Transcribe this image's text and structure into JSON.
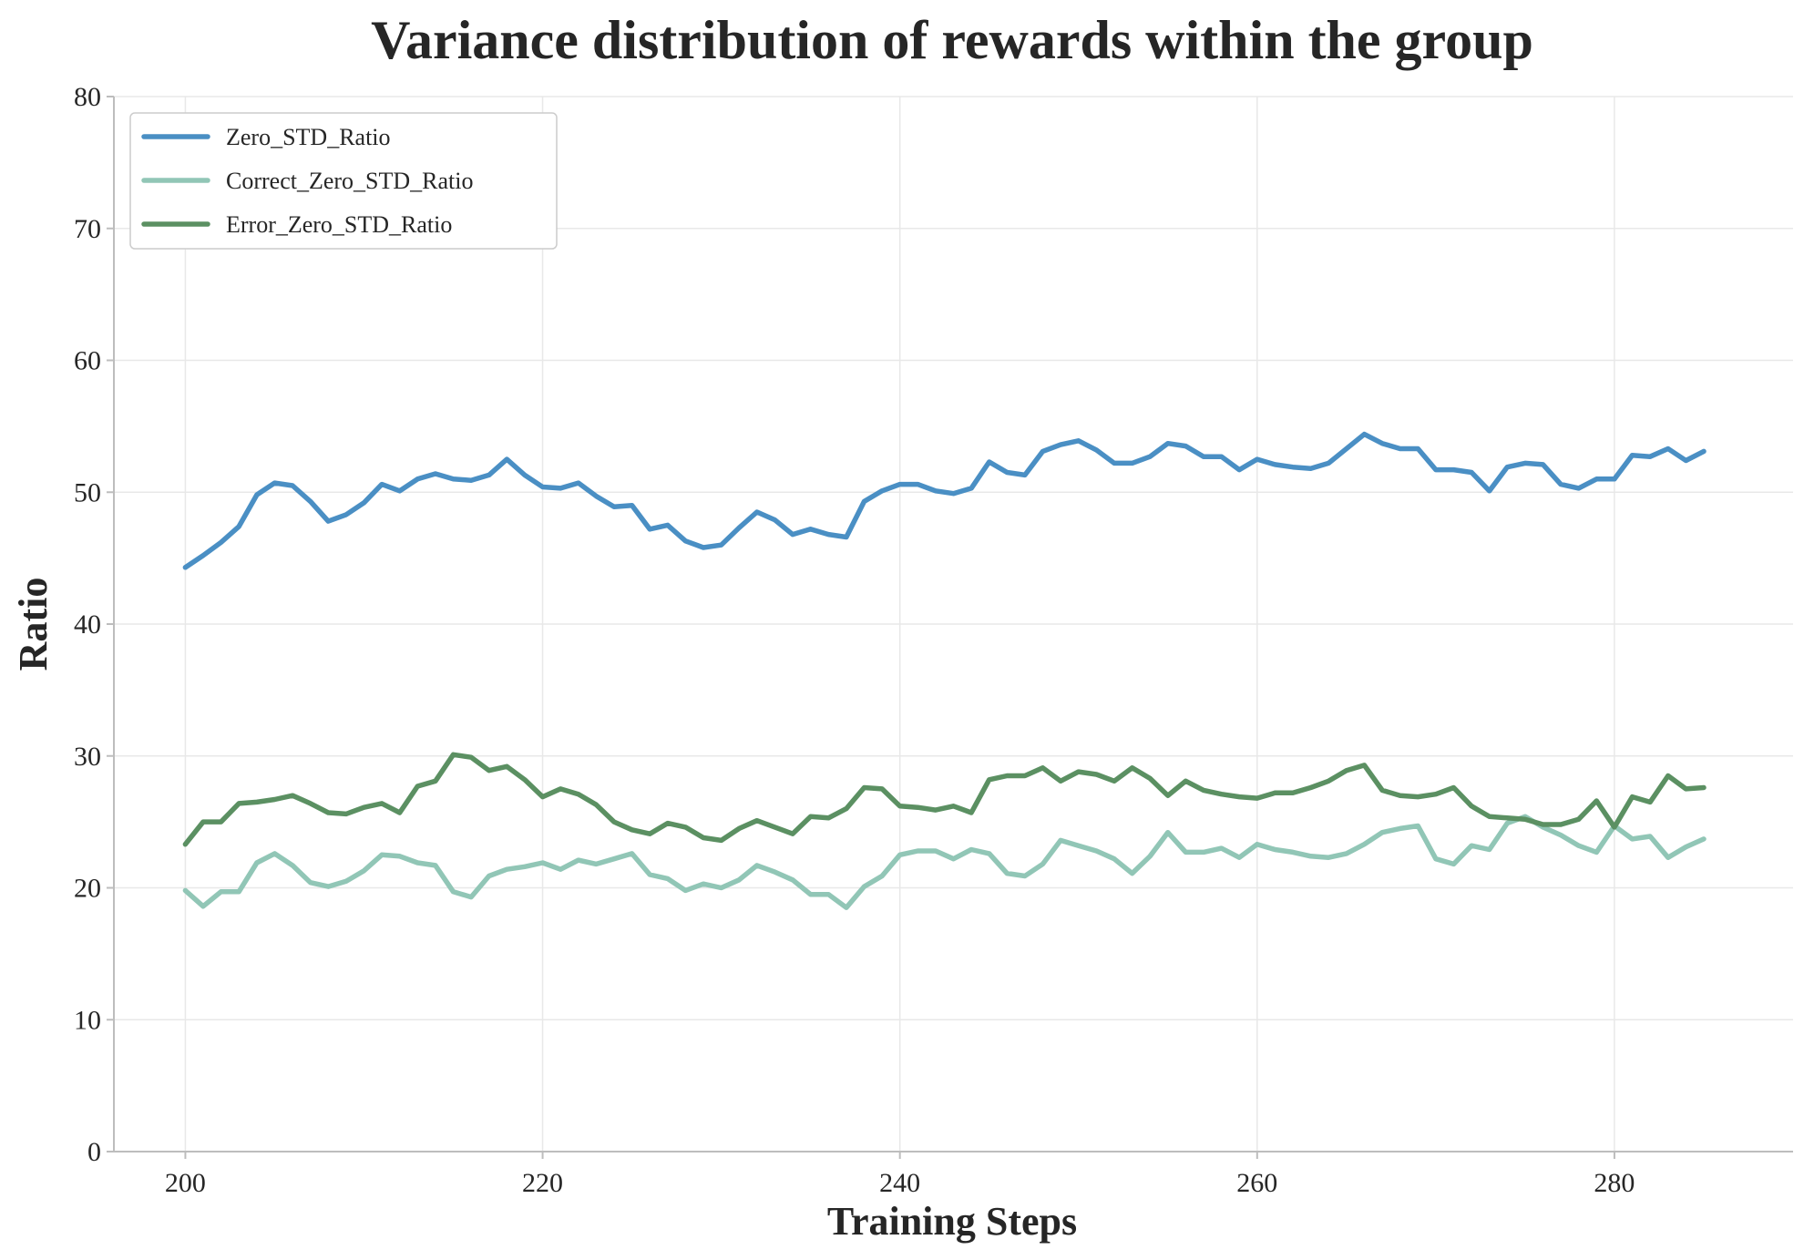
{
  "chart_data": {
    "type": "line",
    "title": "Variance distribution of rewards within the group",
    "xlabel": "Training Steps",
    "ylabel": "Ratio",
    "xlim": [
      196,
      290
    ],
    "ylim": [
      0,
      80
    ],
    "xticks": [
      200,
      220,
      240,
      260,
      280
    ],
    "yticks": [
      0,
      10,
      20,
      30,
      40,
      50,
      60,
      70,
      80
    ],
    "grid": true,
    "legend_position": "top-left",
    "x_start": 200,
    "x_step": 1,
    "series": [
      {
        "name": "Zero_STD_Ratio",
        "color": "#4a8fc4",
        "values": [
          44.3,
          45.2,
          46.2,
          47.4,
          49.8,
          50.7,
          50.5,
          49.3,
          47.8,
          48.3,
          49.2,
          50.6,
          50.1,
          51.0,
          51.4,
          51.0,
          50.9,
          51.3,
          52.5,
          51.3,
          50.4,
          50.3,
          50.7,
          49.7,
          48.9,
          49.0,
          47.2,
          47.5,
          46.3,
          45.8,
          46.0,
          47.3,
          48.5,
          47.9,
          46.8,
          47.2,
          46.8,
          46.6,
          49.3,
          50.1,
          50.6,
          50.6,
          50.1,
          49.9,
          50.3,
          52.3,
          51.5,
          51.3,
          53.1,
          53.6,
          53.9,
          53.2,
          52.2,
          52.2,
          52.7,
          53.7,
          53.5,
          52.7,
          52.7,
          51.7,
          52.5,
          52.1,
          51.9,
          51.8,
          52.2,
          53.3,
          54.4,
          53.7,
          53.3,
          53.3,
          51.7,
          51.7,
          51.5,
          50.1,
          51.9,
          52.2,
          52.1,
          50.6,
          50.3,
          51.0,
          51.0,
          52.8,
          52.7,
          53.3,
          52.4,
          53.1
        ]
      },
      {
        "name": "Correct_Zero_STD_Ratio",
        "color": "#91c6b6",
        "values": [
          19.8,
          18.6,
          19.7,
          19.7,
          21.9,
          22.6,
          21.7,
          20.4,
          20.1,
          20.5,
          21.3,
          22.5,
          22.4,
          21.9,
          21.7,
          19.7,
          19.3,
          20.9,
          21.4,
          21.6,
          21.9,
          21.4,
          22.1,
          21.8,
          22.2,
          22.6,
          21.0,
          20.7,
          19.8,
          20.3,
          20.0,
          20.6,
          21.7,
          21.2,
          20.6,
          19.5,
          19.5,
          18.5,
          20.1,
          20.9,
          22.5,
          22.8,
          22.8,
          22.2,
          22.9,
          22.6,
          21.1,
          20.9,
          21.8,
          23.6,
          23.2,
          22.8,
          22.2,
          21.1,
          22.4,
          24.2,
          22.7,
          22.7,
          23.0,
          22.3,
          23.3,
          22.9,
          22.7,
          22.4,
          22.3,
          22.6,
          23.3,
          24.2,
          24.5,
          24.7,
          22.2,
          21.8,
          23.2,
          22.9,
          24.9,
          25.4,
          24.6,
          24.0,
          23.2,
          22.7,
          24.7,
          23.7,
          23.9,
          22.3,
          23.1,
          23.7
        ]
      },
      {
        "name": "Error_Zero_STD_Ratio",
        "color": "#5b9062",
        "values": [
          23.3,
          25.0,
          25.0,
          26.4,
          26.5,
          26.7,
          27.0,
          26.4,
          25.7,
          25.6,
          26.1,
          26.4,
          25.7,
          27.7,
          28.1,
          30.1,
          29.9,
          28.9,
          29.2,
          28.2,
          26.9,
          27.5,
          27.1,
          26.3,
          25.0,
          24.4,
          24.1,
          24.9,
          24.6,
          23.8,
          23.6,
          24.5,
          25.1,
          24.6,
          24.1,
          25.4,
          25.3,
          26.0,
          27.6,
          27.5,
          26.2,
          26.1,
          25.9,
          26.2,
          25.7,
          28.2,
          28.5,
          28.5,
          29.1,
          28.1,
          28.8,
          28.6,
          28.1,
          29.1,
          28.3,
          27.0,
          28.1,
          27.4,
          27.1,
          26.9,
          26.8,
          27.2,
          27.2,
          27.6,
          28.1,
          28.9,
          29.3,
          27.4,
          27.0,
          26.9,
          27.1,
          27.6,
          26.2,
          25.4,
          25.3,
          25.2,
          24.8,
          24.8,
          25.2,
          26.6,
          24.6,
          26.9,
          26.5,
          28.5,
          27.5,
          27.6
        ]
      }
    ]
  }
}
